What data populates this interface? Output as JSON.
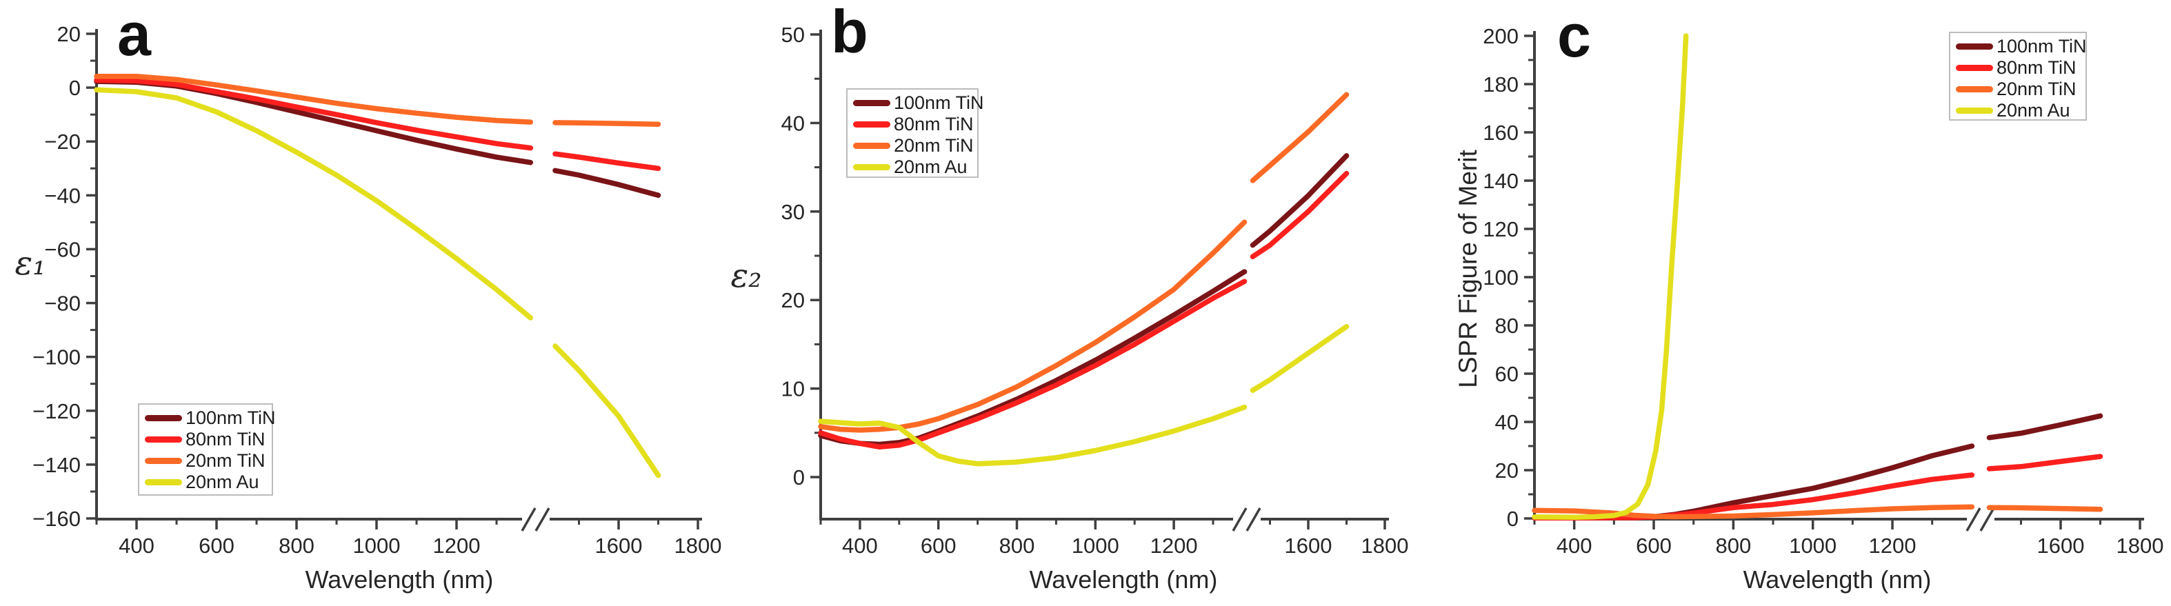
{
  "figure": {
    "background": "#ffffff",
    "axis_color": "#3f3f3f",
    "text_color": "#262626",
    "legend_border_color": "#bcbcbc"
  },
  "legend": {
    "entries": [
      {
        "label": "100nm TiN",
        "color": "#7a1417"
      },
      {
        "label": "80nm TiN",
        "color": "#fb201e"
      },
      {
        "label": "20nm TiN",
        "color": "#fb6a25"
      },
      {
        "label": "20nm Au",
        "color": "#e3df1c"
      }
    ]
  },
  "chart_data": [
    {
      "type": "line",
      "panel_label": "a",
      "ylabel": "ε₁",
      "xlabel": "Wavelength (nm)",
      "xlim": [
        300,
        1800
      ],
      "ylim": [
        -160,
        20
      ],
      "x_ticks_major": [
        400,
        600,
        800,
        1000,
        1200,
        1600,
        1800
      ],
      "x_ticks_minor": [
        300,
        500,
        700,
        900,
        1100,
        1300,
        1500,
        1700
      ],
      "y_ticks_major": [
        20,
        0,
        -20,
        -40,
        -60,
        -80,
        -100,
        -120,
        -140,
        -160
      ],
      "y_ticks_minor": [
        10,
        -10,
        -30,
        -50,
        -70,
        -90,
        -110,
        -130,
        -150
      ],
      "axis_break": {
        "position_nm": 1400,
        "marker": "//"
      },
      "legend_position": "lower-left",
      "series": [
        {
          "name": "100nm TiN",
          "color": "#7a1417",
          "segments": [
            {
              "x": [
                300,
                400,
                500,
                600,
                700,
                800,
                900,
                1000,
                1100,
                1200,
                1300,
                1385
              ],
              "y": [
                2.3,
                2.0,
                0.6,
                -2.2,
                -5.5,
                -9.0,
                -12.5,
                -16.0,
                -19.5,
                -22.8,
                -25.8,
                -27.8
              ]
            },
            {
              "x": [
                1440,
                1500,
                1600,
                1700
              ],
              "y": [
                -30.8,
                -32.5,
                -36.0,
                -40.0
              ]
            }
          ]
        },
        {
          "name": "80nm TiN",
          "color": "#fb201e",
          "segments": [
            {
              "x": [
                300,
                400,
                500,
                600,
                700,
                800,
                900,
                1000,
                1100,
                1200,
                1300,
                1385
              ],
              "y": [
                2.8,
                2.5,
                1.2,
                -1.5,
                -4.2,
                -7.2,
                -10.0,
                -13.0,
                -15.8,
                -18.3,
                -20.8,
                -22.4
              ]
            },
            {
              "x": [
                1440,
                1500,
                1600,
                1700
              ],
              "y": [
                -24.6,
                -25.8,
                -28.0,
                -30.0
              ]
            }
          ]
        },
        {
          "name": "20nm TiN",
          "color": "#fb6a25",
          "segments": [
            {
              "x": [
                300,
                400,
                500,
                600,
                700,
                800,
                900,
                1000,
                1100,
                1200,
                1300,
                1385
              ],
              "y": [
                4.2,
                4.2,
                3.0,
                1.0,
                -1.2,
                -3.5,
                -5.8,
                -7.8,
                -9.5,
                -11.0,
                -12.2,
                -12.8
              ]
            },
            {
              "x": [
                1440,
                1500,
                1600,
                1700
              ],
              "y": [
                -13.0,
                -13.1,
                -13.3,
                -13.6
              ]
            }
          ]
        },
        {
          "name": "20nm Au",
          "color": "#e3df1c",
          "segments": [
            {
              "x": [
                300,
                400,
                500,
                600,
                700,
                800,
                900,
                1000,
                1100,
                1200,
                1300,
                1385
              ],
              "y": [
                -0.8,
                -1.5,
                -3.8,
                -9.0,
                -16.0,
                -24.0,
                -32.5,
                -42.0,
                -52.5,
                -63.5,
                -75.0,
                -85.5
              ]
            },
            {
              "x": [
                1440,
                1500,
                1600,
                1700
              ],
              "y": [
                -96.0,
                -105.0,
                -122.0,
                -144.0
              ]
            }
          ]
        }
      ]
    },
    {
      "type": "line",
      "panel_label": "b",
      "ylabel": "ε₂",
      "xlabel": "Wavelength (nm)",
      "xlim": [
        300,
        1800
      ],
      "ylim": [
        -5,
        50
      ],
      "x_ticks_major": [
        400,
        600,
        800,
        1000,
        1200,
        1600,
        1800
      ],
      "x_ticks_minor": [
        300,
        500,
        700,
        900,
        1100,
        1300,
        1500,
        1700
      ],
      "y_ticks_major": [
        50,
        40,
        30,
        20,
        10,
        0
      ],
      "y_ticks_minor": [
        45,
        35,
        25,
        15,
        5
      ],
      "axis_break": {
        "position_nm": 1400,
        "marker": "//"
      },
      "legend_position": "upper-left",
      "series": [
        {
          "name": "100nm TiN",
          "color": "#7a1417",
          "segments": [
            {
              "x": [
                300,
                350,
                400,
                450,
                500,
                550,
                600,
                700,
                800,
                900,
                1000,
                1100,
                1200,
                1300,
                1380
              ],
              "y": [
                4.7,
                4.1,
                3.8,
                3.7,
                3.9,
                4.4,
                5.2,
                6.9,
                8.8,
                10.9,
                13.2,
                15.7,
                18.3,
                21.0,
                23.2
              ]
            },
            {
              "x": [
                1455,
                1500,
                1600,
                1700
              ],
              "y": [
                26.2,
                27.8,
                31.8,
                36.3
              ]
            }
          ]
        },
        {
          "name": "80nm TiN",
          "color": "#fb201e",
          "segments": [
            {
              "x": [
                300,
                350,
                400,
                450,
                500,
                550,
                600,
                700,
                800,
                900,
                1000,
                1100,
                1200,
                1300,
                1380
              ],
              "y": [
                5.0,
                4.3,
                3.8,
                3.4,
                3.6,
                4.2,
                5.0,
                6.6,
                8.4,
                10.4,
                12.6,
                15.0,
                17.6,
                20.2,
                22.1
              ]
            },
            {
              "x": [
                1455,
                1500,
                1600,
                1700
              ],
              "y": [
                24.9,
                26.2,
                30.0,
                34.3
              ]
            }
          ]
        },
        {
          "name": "20nm TiN",
          "color": "#fb6a25",
          "segments": [
            {
              "x": [
                300,
                350,
                400,
                450,
                500,
                550,
                600,
                700,
                800,
                900,
                1000,
                1100,
                1200,
                1300,
                1380
              ],
              "y": [
                5.7,
                5.4,
                5.3,
                5.4,
                5.6,
                6.0,
                6.6,
                8.2,
                10.2,
                12.6,
                15.2,
                18.1,
                21.2,
                25.3,
                28.8
              ]
            },
            {
              "x": [
                1455,
                1500,
                1600,
                1700
              ],
              "y": [
                33.5,
                35.2,
                39.0,
                43.2
              ]
            }
          ]
        },
        {
          "name": "20nm Au",
          "color": "#e3df1c",
          "segments": [
            {
              "x": [
                300,
                400,
                450,
                500,
                550,
                600,
                650,
                700,
                800,
                900,
                1000,
                1100,
                1200,
                1300,
                1380
              ],
              "y": [
                6.3,
                6.0,
                6.1,
                5.6,
                3.9,
                2.4,
                1.8,
                1.5,
                1.7,
                2.2,
                3.0,
                4.0,
                5.2,
                6.6,
                7.9
              ]
            },
            {
              "x": [
                1455,
                1500,
                1600,
                1700
              ],
              "y": [
                9.8,
                11.0,
                14.0,
                17.0
              ]
            }
          ]
        }
      ]
    },
    {
      "type": "line",
      "panel_label": "c",
      "ylabel": "LSPR Figure of Merit",
      "xlabel": "Wavelength (nm)",
      "xlim": [
        300,
        1800
      ],
      "ylim": [
        0,
        200
      ],
      "x_ticks_major": [
        400,
        600,
        800,
        1000,
        1200,
        1600,
        1800
      ],
      "x_ticks_minor": [
        300,
        500,
        700,
        900,
        1100,
        1300,
        1500,
        1700
      ],
      "y_ticks_major": [
        200,
        180,
        160,
        140,
        120,
        100,
        80,
        60,
        40,
        20,
        0
      ],
      "y_ticks_minor": [
        190,
        170,
        150,
        130,
        110,
        90,
        70,
        50,
        30,
        10
      ],
      "axis_break": {
        "position_nm": 1400,
        "marker": "//"
      },
      "legend_position": "upper-right",
      "series": [
        {
          "name": "100nm TiN",
          "color": "#7a1417",
          "segments": [
            {
              "x": [
                300,
                400,
                500,
                550,
                600,
                650,
                700,
                800,
                900,
                1000,
                1100,
                1200,
                1300,
                1400
              ],
              "y": [
                0.3,
                0.3,
                0.3,
                0.4,
                0.7,
                1.6,
                3.0,
                6.5,
                9.5,
                12.5,
                16.5,
                21.0,
                26.0,
                30.0
              ]
            },
            {
              "x": [
                1420,
                1500,
                1600,
                1700
              ],
              "y": [
                33.5,
                35.3,
                38.8,
                42.5
              ]
            }
          ]
        },
        {
          "name": "80nm TiN",
          "color": "#fb201e",
          "segments": [
            {
              "x": [
                300,
                400,
                500,
                550,
                600,
                650,
                700,
                800,
                900,
                1000,
                1100,
                1200,
                1300,
                1400
              ],
              "y": [
                0.2,
                0.2,
                0.3,
                0.3,
                0.6,
                1.3,
                2.2,
                4.5,
                5.8,
                7.8,
                10.5,
                13.5,
                16.2,
                18.0
              ]
            },
            {
              "x": [
                1420,
                1500,
                1600,
                1700
              ],
              "y": [
                20.6,
                21.5,
                23.6,
                25.7
              ]
            }
          ]
        },
        {
          "name": "20nm TiN",
          "color": "#fb6a25",
          "segments": [
            {
              "x": [
                300,
                400,
                500,
                550,
                600,
                650,
                700,
                800,
                900,
                1000,
                1100,
                1200,
                1300,
                1400
              ],
              "y": [
                3.3,
                3.1,
                2.2,
                1.3,
                0.9,
                0.7,
                0.8,
                1.0,
                1.6,
                2.3,
                3.2,
                4.0,
                4.5,
                4.8
              ]
            },
            {
              "x": [
                1420,
                1500,
                1600,
                1700
              ],
              "y": [
                4.5,
                4.4,
                4.1,
                3.8
              ]
            }
          ]
        },
        {
          "name": "20nm Au",
          "color": "#e3df1c",
          "segments": [
            {
              "x": [
                300,
                400,
                450,
                500,
                530,
                560,
                585,
                605,
                620,
                632,
                645,
                660,
                672,
                681
              ],
              "y": [
                0.6,
                0.5,
                0.7,
                1.2,
                2.5,
                6.0,
                14.0,
                28.0,
                45.0,
                70.0,
                105.0,
                140.0,
                170.0,
                200.0
              ]
            }
          ]
        }
      ]
    }
  ]
}
